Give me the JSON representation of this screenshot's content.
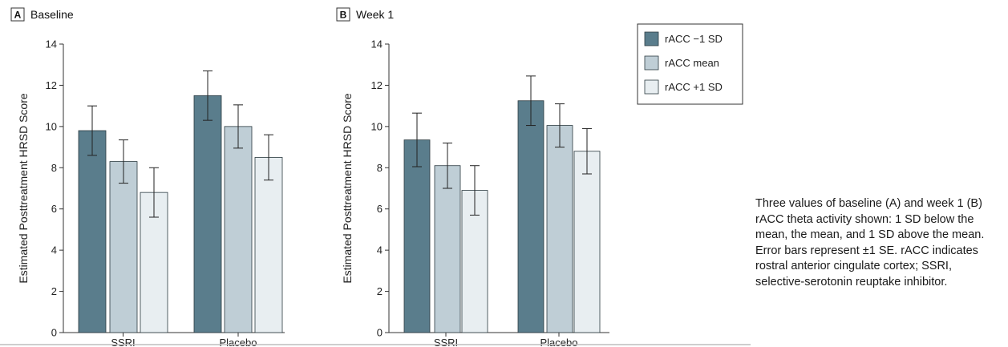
{
  "colors": {
    "series_1": "#5a7d8c",
    "series_2": "#bfced6",
    "series_3": "#e8eef1",
    "bar_stroke": "#2b3a40",
    "axis": "#333333",
    "divider": "#bdbdbd"
  },
  "caption": "Three values of baseline (A) and week 1 (B) rACC theta activity shown: 1 SD below the mean, the mean, and 1 SD above the mean. Error bars represent ±1 SE. rACC indicates rostral anterior cingulate cortex; SSRI, selective-serotonin reuptake inhibitor.",
  "chart_data": [
    {
      "type": "bar",
      "panel_letter": "A",
      "title": "Baseline",
      "ylabel": "Estimated Posttreatment HRSD Score",
      "xlabel": "",
      "ylim": [
        0,
        14
      ],
      "yticks": [
        0,
        2,
        4,
        6,
        8,
        10,
        12,
        14
      ],
      "grid": false,
      "categories": [
        "SSRI",
        "Placebo"
      ],
      "series": [
        {
          "name": "rACC −1 SD",
          "values": [
            9.8,
            11.5
          ],
          "errors": [
            1.2,
            1.2
          ]
        },
        {
          "name": "rACC mean",
          "values": [
            8.3,
            10.0
          ],
          "errors": [
            1.05,
            1.05
          ]
        },
        {
          "name": "rACC +1 SD",
          "values": [
            6.8,
            8.5
          ],
          "errors": [
            1.2,
            1.1
          ]
        }
      ]
    },
    {
      "type": "bar",
      "panel_letter": "B",
      "title": "Week 1",
      "ylabel": "Estimated Posttreatment HRSD Score",
      "xlabel": "",
      "ylim": [
        0,
        14
      ],
      "yticks": [
        0,
        2,
        4,
        6,
        8,
        10,
        12,
        14
      ],
      "grid": false,
      "categories": [
        "SSRI",
        "Placebo"
      ],
      "series": [
        {
          "name": "rACC −1 SD",
          "values": [
            9.35,
            11.25
          ],
          "errors": [
            1.3,
            1.2
          ]
        },
        {
          "name": "rACC mean",
          "values": [
            8.1,
            10.05
          ],
          "errors": [
            1.1,
            1.05
          ]
        },
        {
          "name": "rACC +1 SD",
          "values": [
            6.9,
            8.8
          ],
          "errors": [
            1.2,
            1.1
          ]
        }
      ],
      "legend": {
        "placement": "right",
        "entries": [
          "rACC −1 SD",
          "rACC mean",
          "rACC +1 SD"
        ]
      }
    }
  ]
}
